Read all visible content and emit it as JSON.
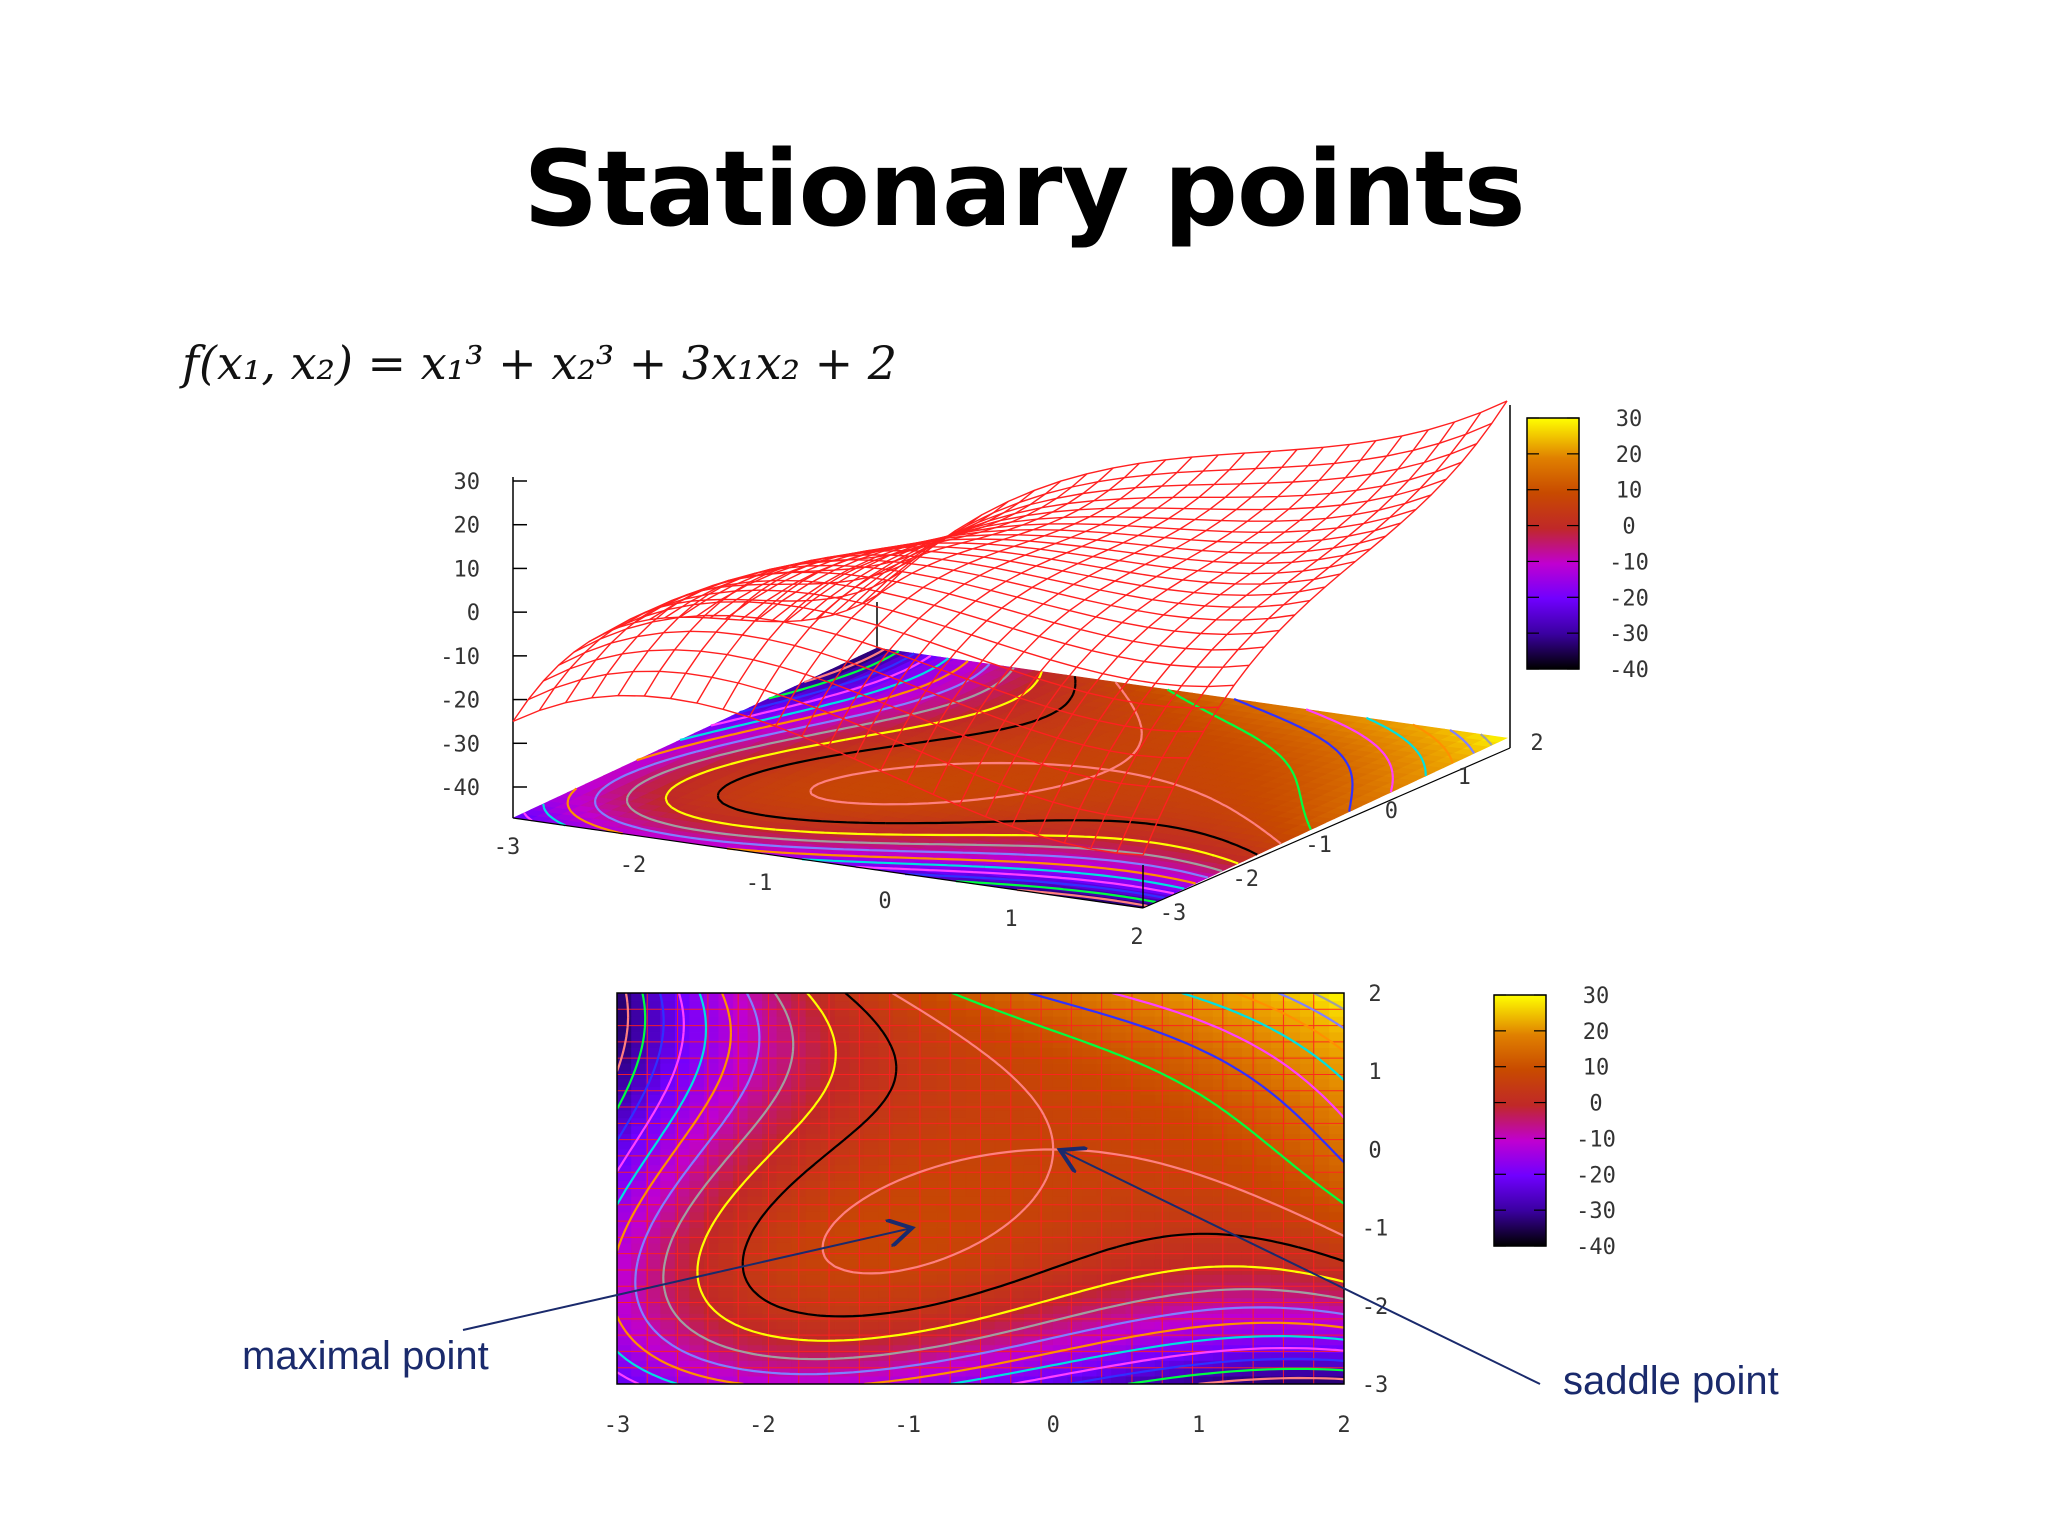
{
  "slide": {
    "title": "Stationary points",
    "formula": "f(x₁, x₂) = x₁³ + x₂³ + 3x₁x₂ + 2"
  },
  "colors": {
    "mesh": "#ff2020",
    "annotation": "#1a2a6c",
    "palette": [
      "#000000",
      "#3a00a0",
      "#7000ff",
      "#c000d0",
      "#c02828",
      "#c84a00",
      "#e08000",
      "#f0b000",
      "#ffff00"
    ]
  },
  "chart_data": [
    {
      "type": "surface",
      "function": "x1^3 + x2^3 + 3*x1*x2 + 2",
      "x_ticks": [
        "-3",
        "-2",
        "-1",
        "0",
        "1",
        "2"
      ],
      "y_ticks": [
        "-3",
        "-2",
        "-1",
        "0",
        "1",
        "2"
      ],
      "z_ticks": [
        "30",
        "20",
        "10",
        "0",
        "-10",
        "-20",
        "-30",
        "-40"
      ],
      "xlim": [
        -3,
        2
      ],
      "ylim": [
        -3,
        2
      ],
      "zlim": [
        -40,
        30
      ],
      "base": "filled contour map",
      "colorbar_ticks": [
        "30",
        "20",
        "10",
        "0",
        "-10",
        "-20",
        "-30",
        "-40"
      ]
    },
    {
      "type": "heatmap",
      "function": "x1^3 + x2^3 + 3*x1*x2 + 2",
      "x_ticks": [
        "-3",
        "-2",
        "-1",
        "0",
        "1",
        "2"
      ],
      "y_ticks": [
        "2",
        "1",
        "0",
        "-1",
        "-2",
        "-3"
      ],
      "xlim": [
        -3,
        2
      ],
      "ylim": [
        -3,
        2
      ],
      "colorbar_ticks": [
        "30",
        "20",
        "10",
        "0",
        "-10",
        "-20",
        "-30",
        "-40"
      ],
      "annotations": [
        {
          "text": "maximal point",
          "x": -1,
          "y": -1
        },
        {
          "text": "saddle point",
          "x": 0,
          "y": 0
        }
      ]
    }
  ]
}
